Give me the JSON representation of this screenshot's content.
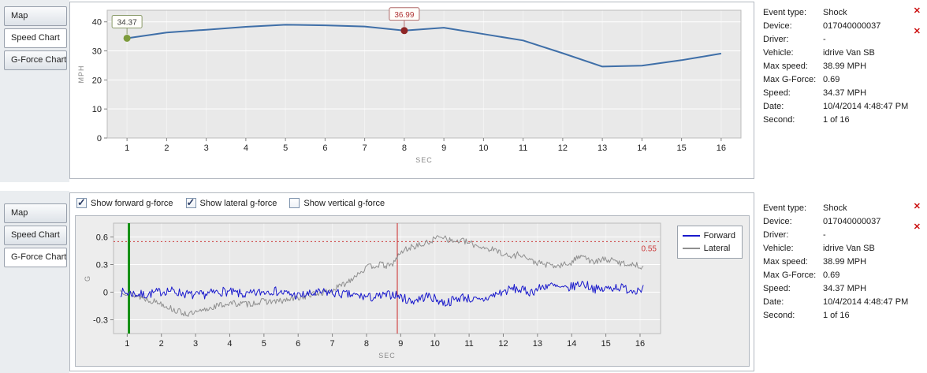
{
  "tabs": [
    "Map",
    "Speed Chart",
    "G-Force Chart"
  ],
  "panels": {
    "top": {
      "selected_tab": "Speed Chart"
    },
    "bottom": {
      "selected_tab": "G-Force Chart"
    }
  },
  "gforce_toggles": [
    {
      "label": "Show forward g-force",
      "checked": true
    },
    {
      "label": "Show lateral g-force",
      "checked": true
    },
    {
      "label": "Show vertical g-force",
      "checked": false
    }
  ],
  "event_details": {
    "rows": [
      {
        "label": "Event type:",
        "value": "Shock"
      },
      {
        "label": "Device:",
        "value": "017040000037"
      },
      {
        "label": "Driver:",
        "value": "-"
      },
      {
        "label": "Vehicle:",
        "value": "idrive Van SB"
      },
      {
        "label": "Max speed:",
        "value": "38.99 MPH"
      },
      {
        "label": "Max G-Force:",
        "value": "0.69"
      },
      {
        "label": "Speed:",
        "value": "34.37 MPH"
      },
      {
        "label": "Date:",
        "value": "10/4/2014 4:48:47 PM"
      },
      {
        "label": "Second:",
        "value": "1 of 16"
      }
    ]
  },
  "icons": {
    "close": "✕"
  },
  "colors": {
    "speed_line": "#3f6fa8",
    "forward_line": "#1a1acc",
    "lateral_line": "#8f8f8f",
    "marker_start": "#7d9b3c",
    "marker_event": "#8e2525",
    "threshold_line": "#cc3a3a",
    "start_vline": "#159015",
    "event_vline": "#cc2a2a"
  },
  "chart_data": [
    {
      "type": "line",
      "title": "",
      "xlabel": "SEC",
      "ylabel": "MPH",
      "xlim": [
        0.5,
        16.5
      ],
      "ylim": [
        0,
        44
      ],
      "xticks": [
        1,
        2,
        3,
        4,
        5,
        6,
        7,
        8,
        9,
        10,
        11,
        12,
        13,
        14,
        15,
        16
      ],
      "yticks": [
        0,
        10,
        20,
        30,
        40
      ],
      "grid": true,
      "series": [
        {
          "name": "Speed",
          "color": "#3f6fa8",
          "width": 2,
          "x": [
            1,
            2,
            3,
            4,
            5,
            6,
            7,
            8,
            9,
            10,
            11,
            12,
            13,
            14,
            15,
            16
          ],
          "y": [
            34.37,
            36.3,
            37.3,
            38.3,
            38.99,
            38.8,
            38.4,
            36.99,
            38.0,
            35.8,
            33.6,
            29.2,
            24.6,
            24.9,
            26.8,
            29.1
          ]
        }
      ],
      "markers": [
        {
          "x": 1,
          "y": 34.37,
          "label": "34.37",
          "color": "#7d9b3c",
          "label_color": "#3c3c3c",
          "border": "#8a9a6a"
        },
        {
          "x": 8,
          "y": 36.99,
          "label": "36.99",
          "color": "#8e2525",
          "label_color": "#b03434",
          "border": "#b06a6a"
        }
      ]
    },
    {
      "type": "line",
      "title": "",
      "xlabel": "SEC",
      "ylabel": "G",
      "xlim": [
        0.6,
        16.6
      ],
      "ylim": [
        -0.45,
        0.75
      ],
      "xticks": [
        1,
        2,
        3,
        4,
        5,
        6,
        7,
        8,
        9,
        10,
        11,
        12,
        13,
        14,
        15,
        16
      ],
      "yticks": [
        -0.3,
        0,
        0.3,
        0.6
      ],
      "grid": true,
      "legend_position": "right",
      "series": [
        {
          "name": "Forward",
          "color": "#1a1acc",
          "width": 1,
          "noise": 0.05,
          "seed": 7,
          "keypoints": [
            [
              0.8,
              0.0
            ],
            [
              1.5,
              -0.03
            ],
            [
              2.2,
              0.02
            ],
            [
              3.0,
              -0.04
            ],
            [
              3.8,
              0.01
            ],
            [
              4.5,
              -0.03
            ],
            [
              5.2,
              0.02
            ],
            [
              6.0,
              -0.04
            ],
            [
              6.8,
              0.0
            ],
            [
              7.5,
              -0.03
            ],
            [
              8.2,
              -0.06
            ],
            [
              8.8,
              -0.02
            ],
            [
              9.3,
              -0.1
            ],
            [
              9.8,
              -0.04
            ],
            [
              10.3,
              -0.12
            ],
            [
              10.8,
              -0.05
            ],
            [
              11.3,
              -0.1
            ],
            [
              11.8,
              -0.02
            ],
            [
              12.3,
              0.04
            ],
            [
              12.8,
              0.0
            ],
            [
              13.3,
              0.08
            ],
            [
              13.8,
              0.03
            ],
            [
              14.3,
              0.1
            ],
            [
              14.8,
              0.02
            ],
            [
              15.3,
              0.06
            ],
            [
              15.8,
              0.02
            ],
            [
              16.1,
              0.05
            ]
          ]
        },
        {
          "name": "Lateral",
          "color": "#8f8f8f",
          "width": 1,
          "noise": 0.035,
          "seed": 13,
          "keypoints": [
            [
              0.8,
              0.02
            ],
            [
              1.2,
              -0.03
            ],
            [
              1.6,
              -0.08
            ],
            [
              2.0,
              -0.12
            ],
            [
              2.4,
              -0.2
            ],
            [
              2.8,
              -0.24
            ],
            [
              3.1,
              -0.22
            ],
            [
              3.5,
              -0.16
            ],
            [
              4.0,
              -0.12
            ],
            [
              4.5,
              -0.13
            ],
            [
              5.0,
              -0.1
            ],
            [
              5.5,
              -0.1
            ],
            [
              6.0,
              -0.06
            ],
            [
              6.5,
              -0.02
            ],
            [
              7.0,
              0.02
            ],
            [
              7.4,
              0.1
            ],
            [
              7.8,
              0.22
            ],
            [
              8.1,
              0.28
            ],
            [
              8.4,
              0.3
            ],
            [
              8.7,
              0.28
            ],
            [
              8.9,
              0.38
            ],
            [
              9.1,
              0.46
            ],
            [
              9.4,
              0.5
            ],
            [
              9.7,
              0.52
            ],
            [
              10.0,
              0.58
            ],
            [
              10.2,
              0.62
            ],
            [
              10.5,
              0.55
            ],
            [
              10.8,
              0.56
            ],
            [
              11.1,
              0.52
            ],
            [
              11.5,
              0.48
            ],
            [
              11.9,
              0.44
            ],
            [
              12.2,
              0.38
            ],
            [
              12.5,
              0.42
            ],
            [
              12.8,
              0.34
            ],
            [
              13.2,
              0.3
            ],
            [
              13.6,
              0.28
            ],
            [
              14.0,
              0.32
            ],
            [
              14.3,
              0.42
            ],
            [
              14.6,
              0.32
            ],
            [
              15.0,
              0.36
            ],
            [
              15.4,
              0.32
            ],
            [
              15.8,
              0.3
            ],
            [
              16.1,
              0.28
            ]
          ]
        }
      ],
      "vlines": [
        {
          "x": 1.05,
          "color": "#159015",
          "width": 3
        },
        {
          "x": 8.9,
          "color": "#cc2a2a",
          "width": 1
        }
      ],
      "hlines": [
        {
          "y": 0.55,
          "color": "#cc3a3a",
          "dash": "2,3",
          "label": "0.55"
        }
      ]
    }
  ]
}
